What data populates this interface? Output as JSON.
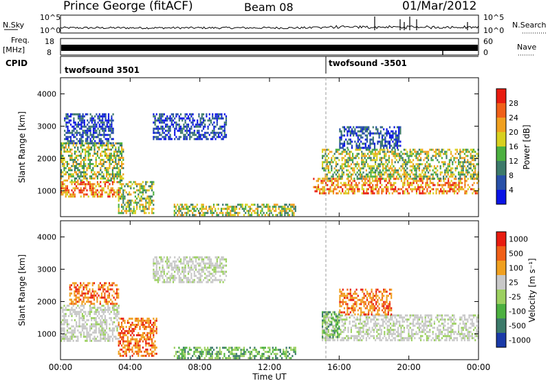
{
  "header": {
    "title": "Prince George (fitACF)",
    "beam": "Beam 08",
    "date": "01/Mar/2012"
  },
  "top_panels": {
    "nsky_label": "N.Sky",
    "nsky_ticks": [
      "10^5",
      "10^0"
    ],
    "nsearch_label": "N.Search",
    "nsearch_ticks": [
      "10^5",
      "10^0"
    ],
    "freq_label_1": "Freq.",
    "freq_label_2": "[MHz]",
    "freq_ticks": [
      "18",
      "8"
    ],
    "nave_label": "Nave",
    "nave_ticks": [
      "60",
      "0"
    ],
    "cpid_label": "CPID",
    "cpid_segments": [
      {
        "start_hour": 0,
        "label": "twofsound 3501"
      },
      {
        "start_hour": 15.2,
        "label": "twofsound -3501"
      }
    ]
  },
  "chart_data": [
    {
      "type": "heatmap",
      "title": "",
      "xlabel": "",
      "ylabel": "Slant Range [km]",
      "xlim": [
        0,
        24
      ],
      "ylim": [
        200,
        4500
      ],
      "yticks": [
        "1000",
        "2000",
        "3000",
        "4000"
      ],
      "colorbar": {
        "label": "Power [dB]",
        "ticks": [
          "4",
          "8",
          "12",
          "16",
          "20",
          "24",
          "28"
        ],
        "colors": [
          "#0a14e6",
          "#2850a8",
          "#3c7a6a",
          "#4cb040",
          "#d8d020",
          "#f0a020",
          "#f06018",
          "#e81c10"
        ]
      },
      "regions": [
        {
          "t0": 0.0,
          "t1": 3.3,
          "r0": 800,
          "r1": 1300,
          "level": "high"
        },
        {
          "t0": 0.0,
          "t1": 3.6,
          "r0": 1300,
          "r1": 2500,
          "level": "mid"
        },
        {
          "t0": 0.2,
          "t1": 3.0,
          "r0": 2500,
          "r1": 3400,
          "level": "low"
        },
        {
          "t0": 3.3,
          "t1": 5.3,
          "r0": 300,
          "r1": 1300,
          "level": "mid"
        },
        {
          "t0": 5.3,
          "t1": 9.5,
          "r0": 2600,
          "r1": 3400,
          "level": "low"
        },
        {
          "t0": 6.5,
          "t1": 13.5,
          "r0": 250,
          "r1": 600,
          "level": "mid"
        },
        {
          "t0": 14.5,
          "t1": 24.0,
          "r0": 900,
          "r1": 1400,
          "level": "high"
        },
        {
          "t0": 15.0,
          "t1": 24.0,
          "r0": 1400,
          "r1": 2300,
          "level": "mid"
        },
        {
          "t0": 16.0,
          "t1": 19.5,
          "r0": 2300,
          "r1": 3000,
          "level": "low"
        }
      ]
    },
    {
      "type": "heatmap",
      "title": "",
      "xlabel": "Time UT",
      "ylabel": "Slant Range [km]",
      "xlim": [
        0,
        24
      ],
      "ylim": [
        200,
        4500
      ],
      "xticks": [
        "00:00",
        "04:00",
        "08:00",
        "12:00",
        "16:00",
        "20:00",
        "00:00"
      ],
      "yticks": [
        "1000",
        "2000",
        "3000",
        "4000"
      ],
      "colorbar": {
        "label": "Velocity [m s⁻¹]",
        "ticks": [
          "1000",
          "500",
          "100",
          "25",
          "-25",
          "-100",
          "-500",
          "-1000"
        ],
        "colors": [
          "#1a3aa8",
          "#3c7a6a",
          "#4cb040",
          "#9cd060",
          "#c8c8c8",
          "#f0a020",
          "#f06018",
          "#e81c10"
        ]
      },
      "regions": [
        {
          "t0": 0.0,
          "t1": 3.3,
          "r0": 800,
          "r1": 1900,
          "level": "zero"
        },
        {
          "t0": 0.5,
          "t1": 3.3,
          "r0": 1900,
          "r1": 2600,
          "level": "away"
        },
        {
          "t0": 3.3,
          "t1": 5.5,
          "r0": 300,
          "r1": 1500,
          "level": "away"
        },
        {
          "t0": 5.3,
          "t1": 9.5,
          "r0": 2600,
          "r1": 3400,
          "level": "zero"
        },
        {
          "t0": 6.5,
          "t1": 13.5,
          "r0": 250,
          "r1": 600,
          "level": "toward"
        },
        {
          "t0": 15.0,
          "t1": 24.0,
          "r0": 800,
          "r1": 1600,
          "level": "zero"
        },
        {
          "t0": 15.0,
          "t1": 16.0,
          "r0": 900,
          "r1": 1700,
          "level": "toward"
        },
        {
          "t0": 16.0,
          "t1": 19.0,
          "r0": 1600,
          "r1": 2400,
          "level": "away"
        }
      ]
    }
  ]
}
